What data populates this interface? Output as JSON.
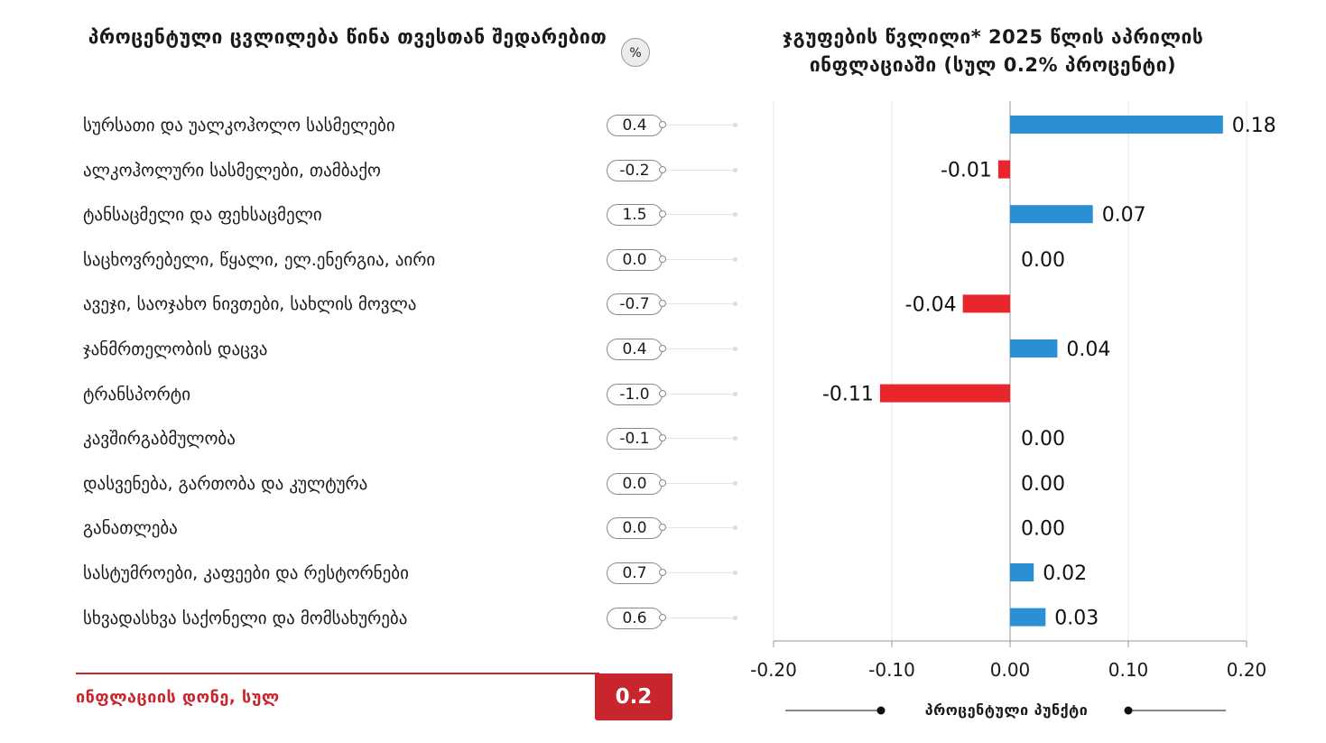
{
  "left_title": "პროცენტული ცვლილება წინა თვესთან შედარებით",
  "unit_badge": "%",
  "right_title": "ჯგუფების წვლილი* 2025 წლის აპრილის ინფლაციაში (სულ 0.2% პროცენტი)",
  "footer": {
    "label": "ინფლაციის დონე, სულ",
    "value": "0.2"
  },
  "axis_caption": "პროცენტული პუნქტი",
  "colors": {
    "positive": "#2b8fd4",
    "negative": "#e8262b",
    "accent": "#c8252c"
  },
  "rows": [
    {
      "label": "სურსათი და უალკოჰოლო სასმელები",
      "change": "0.4"
    },
    {
      "label": "ალკოჰოლური სასმელები, თამბაქო",
      "change": "-0.2"
    },
    {
      "label": "ტანსაცმელი და ფეხსაცმელი",
      "change": "1.5"
    },
    {
      "label": "საცხოვრებელი, წყალი, ელ.ენერგია, აირი",
      "change": "0.0"
    },
    {
      "label": "ავეჯი, საოჯახო ნივთები, სახლის მოვლა",
      "change": "-0.7"
    },
    {
      "label": "ჯანმრთელობის დაცვა",
      "change": "0.4"
    },
    {
      "label": "ტრანსპორტი",
      "change": "-1.0"
    },
    {
      "label": "კავშირგაბმულობა",
      "change": "-0.1"
    },
    {
      "label": "დასვენება, გართობა და კულტურა",
      "change": "0.0"
    },
    {
      "label": "განათლება",
      "change": "0.0"
    },
    {
      "label": "სასტუმროები, კაფეები და რესტორნები",
      "change": "0.7"
    },
    {
      "label": "სხვადასხვა საქონელი და მომსახურება",
      "change": "0.6"
    }
  ],
  "chart_data": {
    "type": "bar",
    "orientation": "horizontal",
    "title": "ჯგუფების წვლილი* 2025 წლის აპრილის ინფლაციაში (სულ 0.2% პროცენტი)",
    "xlabel": "პროცენტული პუნქტი",
    "categories": [
      "სურსათი და უალკოჰოლო სასმელები",
      "ალკოჰოლური სასმელები, თამბაქო",
      "ტანსაცმელი და ფეხსაცმელი",
      "საცხოვრებელი, წყალი, ელ.ენერგია, აირი",
      "ავეჯი, საოჯახო ნივთები, სახლის მოვლა",
      "ჯანმრთელობის დაცვა",
      "ტრანსპორტი",
      "კავშირგაბმულობა",
      "დასვენება, გართობა და კულტურა",
      "განათლება",
      "სასტუმროები, კაფეები და რესტორნები",
      "სხვადასხვა საქონელი და მომსახურება"
    ],
    "values": [
      0.18,
      -0.01,
      0.07,
      0.0,
      -0.04,
      0.04,
      -0.11,
      0.0,
      0.0,
      0.0,
      0.02,
      0.03
    ],
    "value_labels": [
      "0.18",
      "-0.01",
      "0.07",
      "0.00",
      "-0.04",
      "0.04",
      "-0.11",
      "0.00",
      "0.00",
      "0.00",
      "0.02",
      "0.03"
    ],
    "xlim": [
      -0.2,
      0.2
    ],
    "xticks": [
      "-0.20",
      "-0.10",
      "0.00",
      "0.10",
      "0.20"
    ],
    "xtick_values": [
      -0.2,
      -0.1,
      0,
      0.1,
      0.2
    ],
    "grid": true
  }
}
